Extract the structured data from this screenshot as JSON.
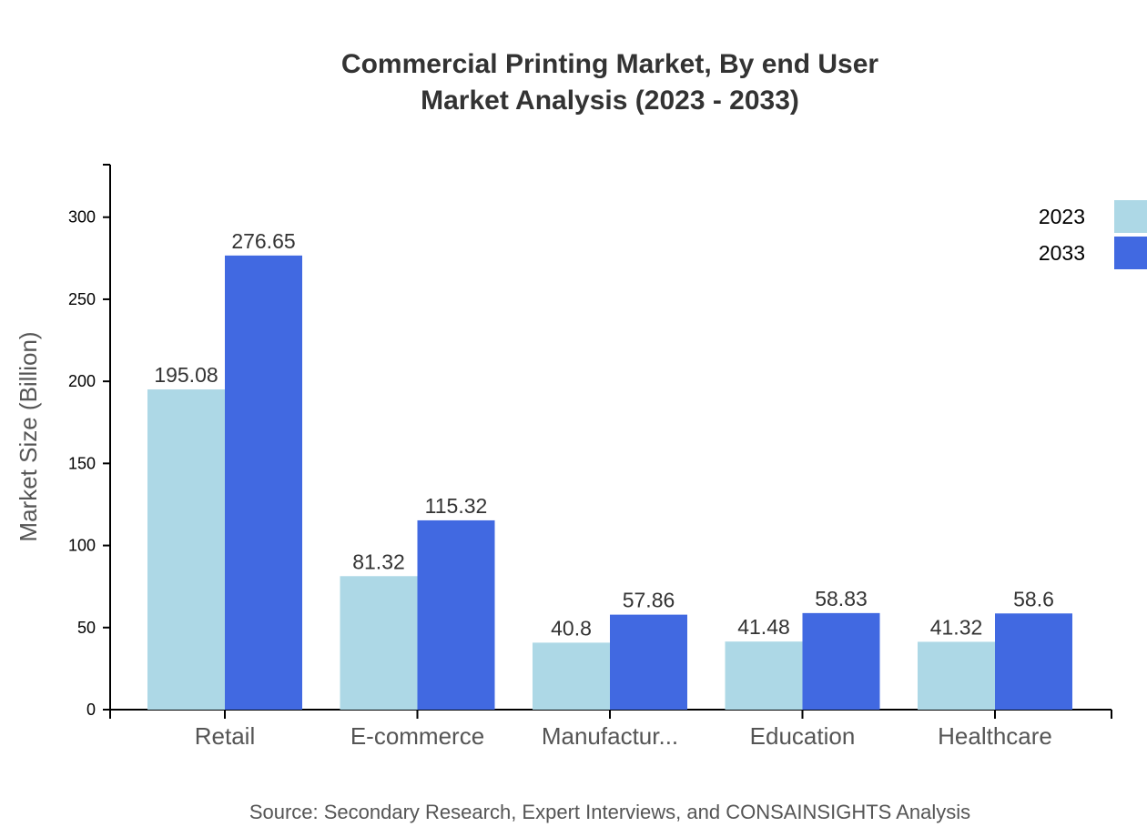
{
  "chart_data": {
    "type": "bar",
    "title": "Commercial Printing Market, By end User",
    "subtitle": "Market Analysis (2023 - 2033)",
    "xlabel": "",
    "ylabel": "Market Size (Billion)",
    "ylim": [
      0,
      332
    ],
    "yticks": [
      0,
      50,
      100,
      150,
      200,
      250,
      300
    ],
    "categories": [
      "Retail",
      "E-commerce",
      "Manufactur...",
      "Education",
      "Healthcare"
    ],
    "series": [
      {
        "name": "2023",
        "color": "#add8e6",
        "values": [
          195.08,
          81.32,
          40.8,
          41.48,
          41.32
        ]
      },
      {
        "name": "2033",
        "color": "#4169e1",
        "values": [
          276.65,
          115.32,
          57.86,
          58.83,
          58.6
        ]
      }
    ],
    "legend": "top-right",
    "grid": false,
    "source": "Source: Secondary Research, Expert Interviews, and CONSAINSIGHTS Analysis"
  }
}
